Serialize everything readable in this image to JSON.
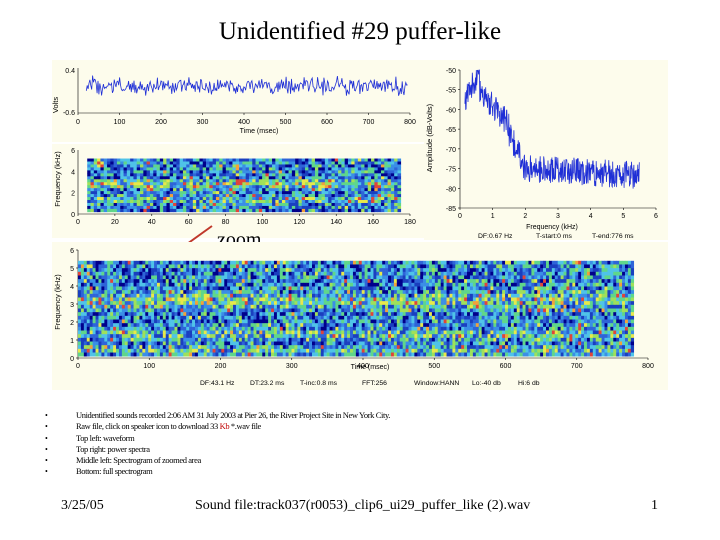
{
  "slide": {
    "title": "Unidentified #29 puffer-like",
    "zoom_label": "zoom",
    "date": "3/25/05",
    "sound_file": "Sound file:track037(r0053)_clip6_ui29_puffer_like (2).wav",
    "page_number": "1"
  },
  "bullets": [
    {
      "text": "Unidentified sounds recorded 2:06 AM 31 July 2003 at Pier 26, the River Project Site in New York City."
    },
    {
      "before": "Raw file, click on speaker icon to download 33 ",
      "highlight": "Kb",
      "after": " *.wav file"
    },
    {
      "text": "Top left: waveform"
    },
    {
      "text": "Top right: power spectra"
    },
    {
      "text": "Middle left: Spectrogram of zoomed area"
    },
    {
      "text": "Bottom: full spectrogram"
    }
  ],
  "waveform": {
    "ylabel": "Volts",
    "yticks": [
      "0.4",
      "-0.6"
    ],
    "xlabel": "Time (msec)",
    "xticks": [
      "0",
      "100",
      "200",
      "300",
      "400",
      "500",
      "600",
      "700",
      "800"
    ],
    "xlim": [
      0,
      800
    ]
  },
  "zoom_spectrogram": {
    "ylabel": "Frequency (kHz)",
    "yticks": [
      "6",
      "4",
      "2",
      "0"
    ],
    "xlabel": "Time (msec)",
    "xticks": [
      "0",
      "20",
      "40",
      "60",
      "80",
      "100",
      "120",
      "140",
      "160",
      "180"
    ],
    "xlim": [
      0,
      180
    ],
    "ylim": [
      0,
      6
    ]
  },
  "power_spectrum": {
    "ylabel": "Amplitude (dB-Volts)",
    "yticks": [
      "-50",
      "-55",
      "-60",
      "-65",
      "-70",
      "-75",
      "-80",
      "-85"
    ],
    "ylim": [
      -85,
      -50
    ],
    "xlabel": "Frequency (kHz)",
    "xticks": [
      "0",
      "1",
      "2",
      "3",
      "4",
      "5",
      "6"
    ],
    "xlim": [
      0,
      6
    ],
    "info": [
      "DF:0.67 Hz",
      "T-start:0 ms",
      "T-end:776 ms"
    ]
  },
  "full_spectrogram": {
    "ylabel": "Frequency (kHz)",
    "yticks": [
      "6",
      "5",
      "4",
      "3",
      "2",
      "1",
      "0"
    ],
    "ylim": [
      0,
      6
    ],
    "xlabel": "Time (msec)",
    "xticks": [
      "0",
      "100",
      "200",
      "300",
      "400",
      "500",
      "600",
      "700",
      "800"
    ],
    "xlim": [
      0,
      800
    ],
    "info": [
      "DF:43.1 Hz",
      "DT:23.2 ms",
      "T-inc:0.8 ms",
      "FFT:256",
      "Window:HANN",
      "Lo:-40 db",
      "Hi:6 db"
    ]
  },
  "colors": {
    "panel_bg": "#fdfcec",
    "waveform_line": "#1f2fd6",
    "spectrum_line": "#1f2fd6",
    "arrow": "#c0392b",
    "highlight_text": "#c00000"
  }
}
